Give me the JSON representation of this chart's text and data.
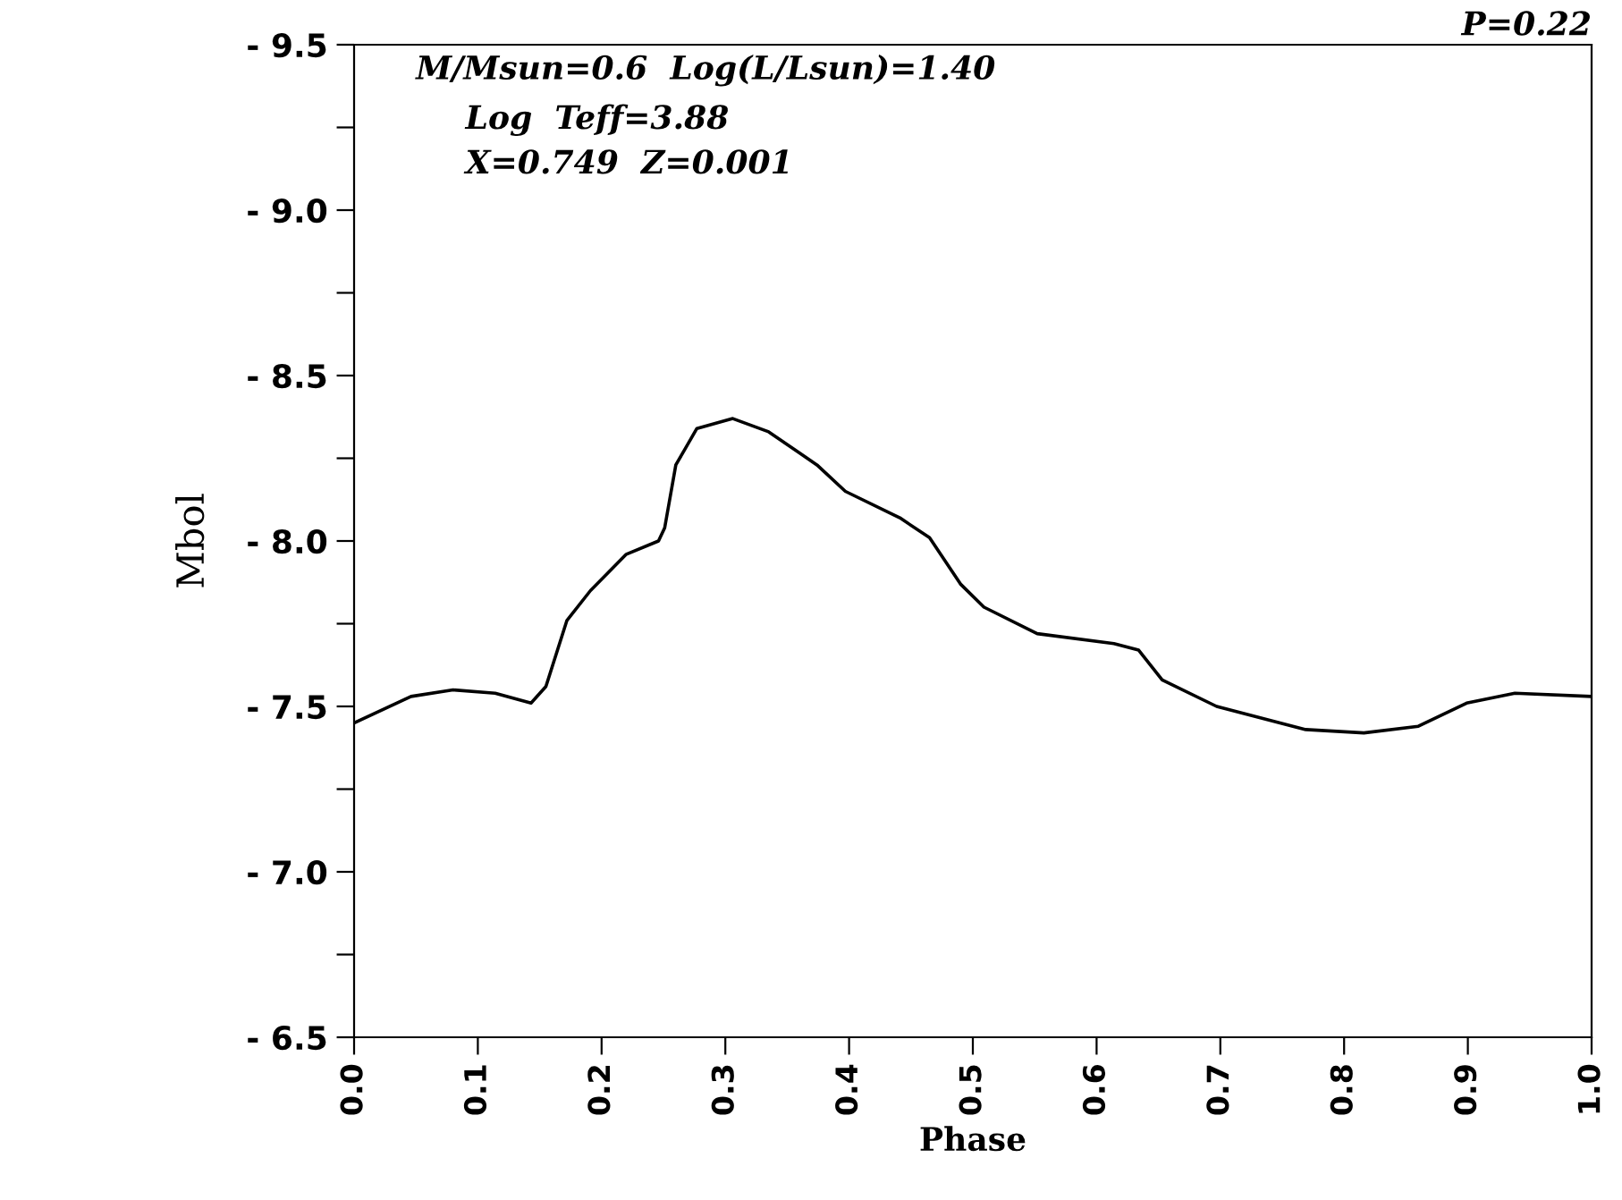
{
  "chart_data": {
    "type": "line",
    "xlabel": "Phase",
    "ylabel": "Mbol",
    "annotations": [
      "P=0.22",
      "M/Msun=0.6  Log(L/Lsun)=1.40",
      "Log  Teff=3.88",
      "X=0.749  Z=0.001"
    ],
    "x": [
      0,
      0.046,
      0.08,
      0.114,
      0.143,
      0.155,
      0.172,
      0.191,
      0.22,
      0.246,
      0.251,
      0.26,
      0.277,
      0.306,
      0.335,
      0.374,
      0.397,
      0.441,
      0.465,
      0.49,
      0.509,
      0.552,
      0.614,
      0.634,
      0.653,
      0.697,
      0.769,
      0.816,
      0.86,
      0.899,
      0.938,
      1.0
    ],
    "series": [
      {
        "color": "#000000",
        "values": [
          -7.45,
          -7.53,
          -7.55,
          -7.54,
          -7.51,
          -7.56,
          -7.76,
          -7.85,
          -7.96,
          -8.0,
          -8.04,
          -8.23,
          -8.34,
          -8.37,
          -8.33,
          -8.23,
          -8.15,
          -8.07,
          -8.01,
          -7.87,
          -7.8,
          -7.72,
          -7.69,
          -7.67,
          -7.58,
          -7.5,
          -7.43,
          -7.42,
          -7.44,
          -7.51,
          -7.54,
          -7.53
        ]
      }
    ],
    "xlim": [
      0,
      1
    ],
    "xticks": [
      {
        "value": 0,
        "label": "0.0"
      },
      0.1,
      0.2,
      0.3,
      0.4,
      0.5,
      0.6,
      0.7,
      0.8,
      0.9,
      {
        "value": 1,
        "label": "1.0"
      }
    ],
    "ylim": [
      -6.5,
      -9.5
    ],
    "yticks": [
      {
        "value": -9.5,
        "label": "- 9.5"
      },
      {
        "value": -9.25,
        "label": null
      },
      {
        "value": -9.0,
        "label": "- 9.0"
      },
      {
        "value": -8.75,
        "label": null
      },
      {
        "value": -8.5,
        "label": "- 8.5"
      },
      {
        "value": -8.25,
        "label": null
      },
      {
        "value": -8.0,
        "label": "- 8.0"
      },
      {
        "value": -7.75,
        "label": null
      },
      {
        "value": -7.5,
        "label": "- 7.5"
      },
      {
        "value": -7.25,
        "label": null
      },
      {
        "value": -7.0,
        "label": "- 7.0"
      },
      {
        "value": -6.75,
        "label": null
      },
      {
        "value": -6.5,
        "label": "- 6.5"
      }
    ],
    "grid": false,
    "legend": false,
    "marker": "none",
    "line_style": "solid"
  }
}
